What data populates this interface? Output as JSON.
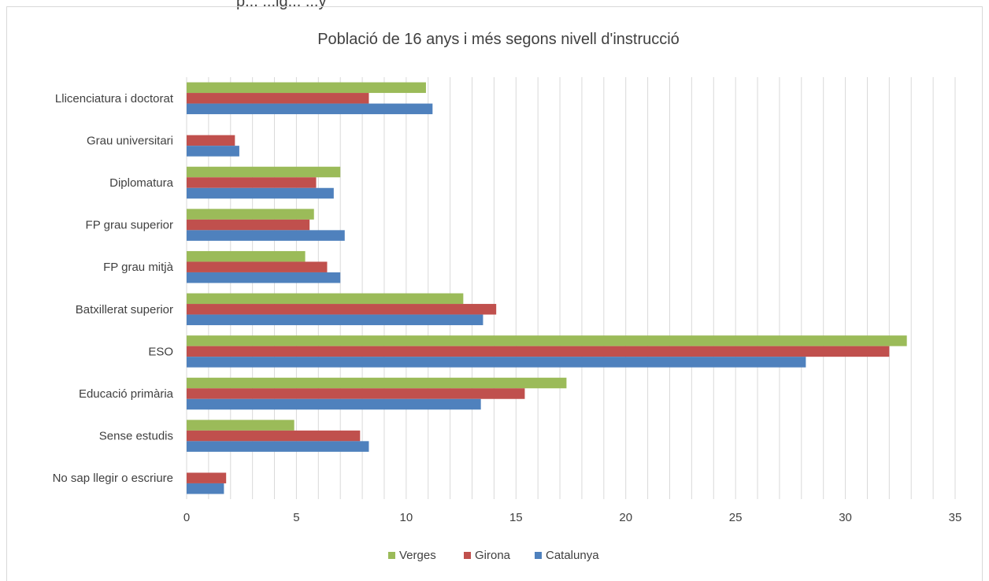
{
  "top_caption": "p... ...ig... ...y",
  "chart_data": {
    "type": "bar",
    "orientation": "horizontal",
    "title": "Població de 16 anys i més segons nivell d'instrucció",
    "xlabel": "",
    "ylabel": "",
    "xlim": [
      0,
      35
    ],
    "x_ticks": [
      "0",
      "5",
      "10",
      "15",
      "20",
      "25",
      "30",
      "35"
    ],
    "grid": true,
    "legend_position": "bottom",
    "categories": [
      "Llicenciatura i doctorat",
      "Grau universitari",
      "Diplomatura",
      "FP grau superior",
      "FP grau mitjà",
      "Batxillerat superior",
      "ESO",
      "Educació primària",
      "Sense estudis",
      "No sap llegir o escriure"
    ],
    "series": [
      {
        "name": "Verges",
        "color": "#9bbb59",
        "values": [
          10.9,
          0,
          7.0,
          5.8,
          5.4,
          12.6,
          32.8,
          17.3,
          4.9,
          0
        ]
      },
      {
        "name": "Girona",
        "color": "#c0504d",
        "values": [
          8.3,
          2.2,
          5.9,
          5.6,
          6.4,
          14.1,
          32.0,
          15.4,
          7.9,
          1.8
        ]
      },
      {
        "name": "Catalunya",
        "color": "#4f81bd",
        "values": [
          11.2,
          2.4,
          6.7,
          7.2,
          7.0,
          13.5,
          28.2,
          13.4,
          8.3,
          1.7
        ]
      }
    ]
  }
}
